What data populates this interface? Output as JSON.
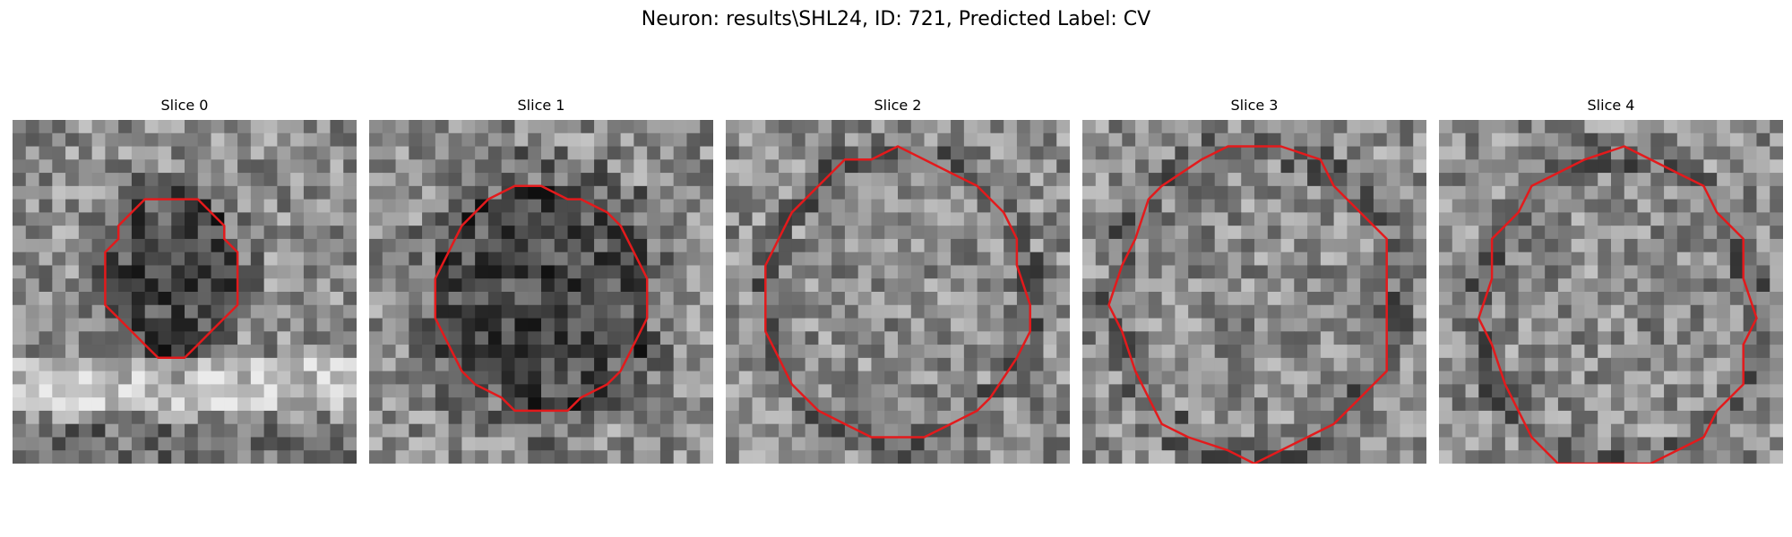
{
  "figure": {
    "title": "Neuron: results\\SHL24, ID: 721, Predicted Label: CV"
  },
  "contour_color": "#e31a1c",
  "panels": [
    {
      "title": "Slice 0",
      "fill": "dark-ring"
    },
    {
      "title": "Slice 1",
      "fill": "dark-ring"
    },
    {
      "title": "Slice 2",
      "fill": "mottled"
    },
    {
      "title": "Slice 3",
      "fill": "mottled"
    },
    {
      "title": "Slice 4",
      "fill": "mottled"
    }
  ]
}
